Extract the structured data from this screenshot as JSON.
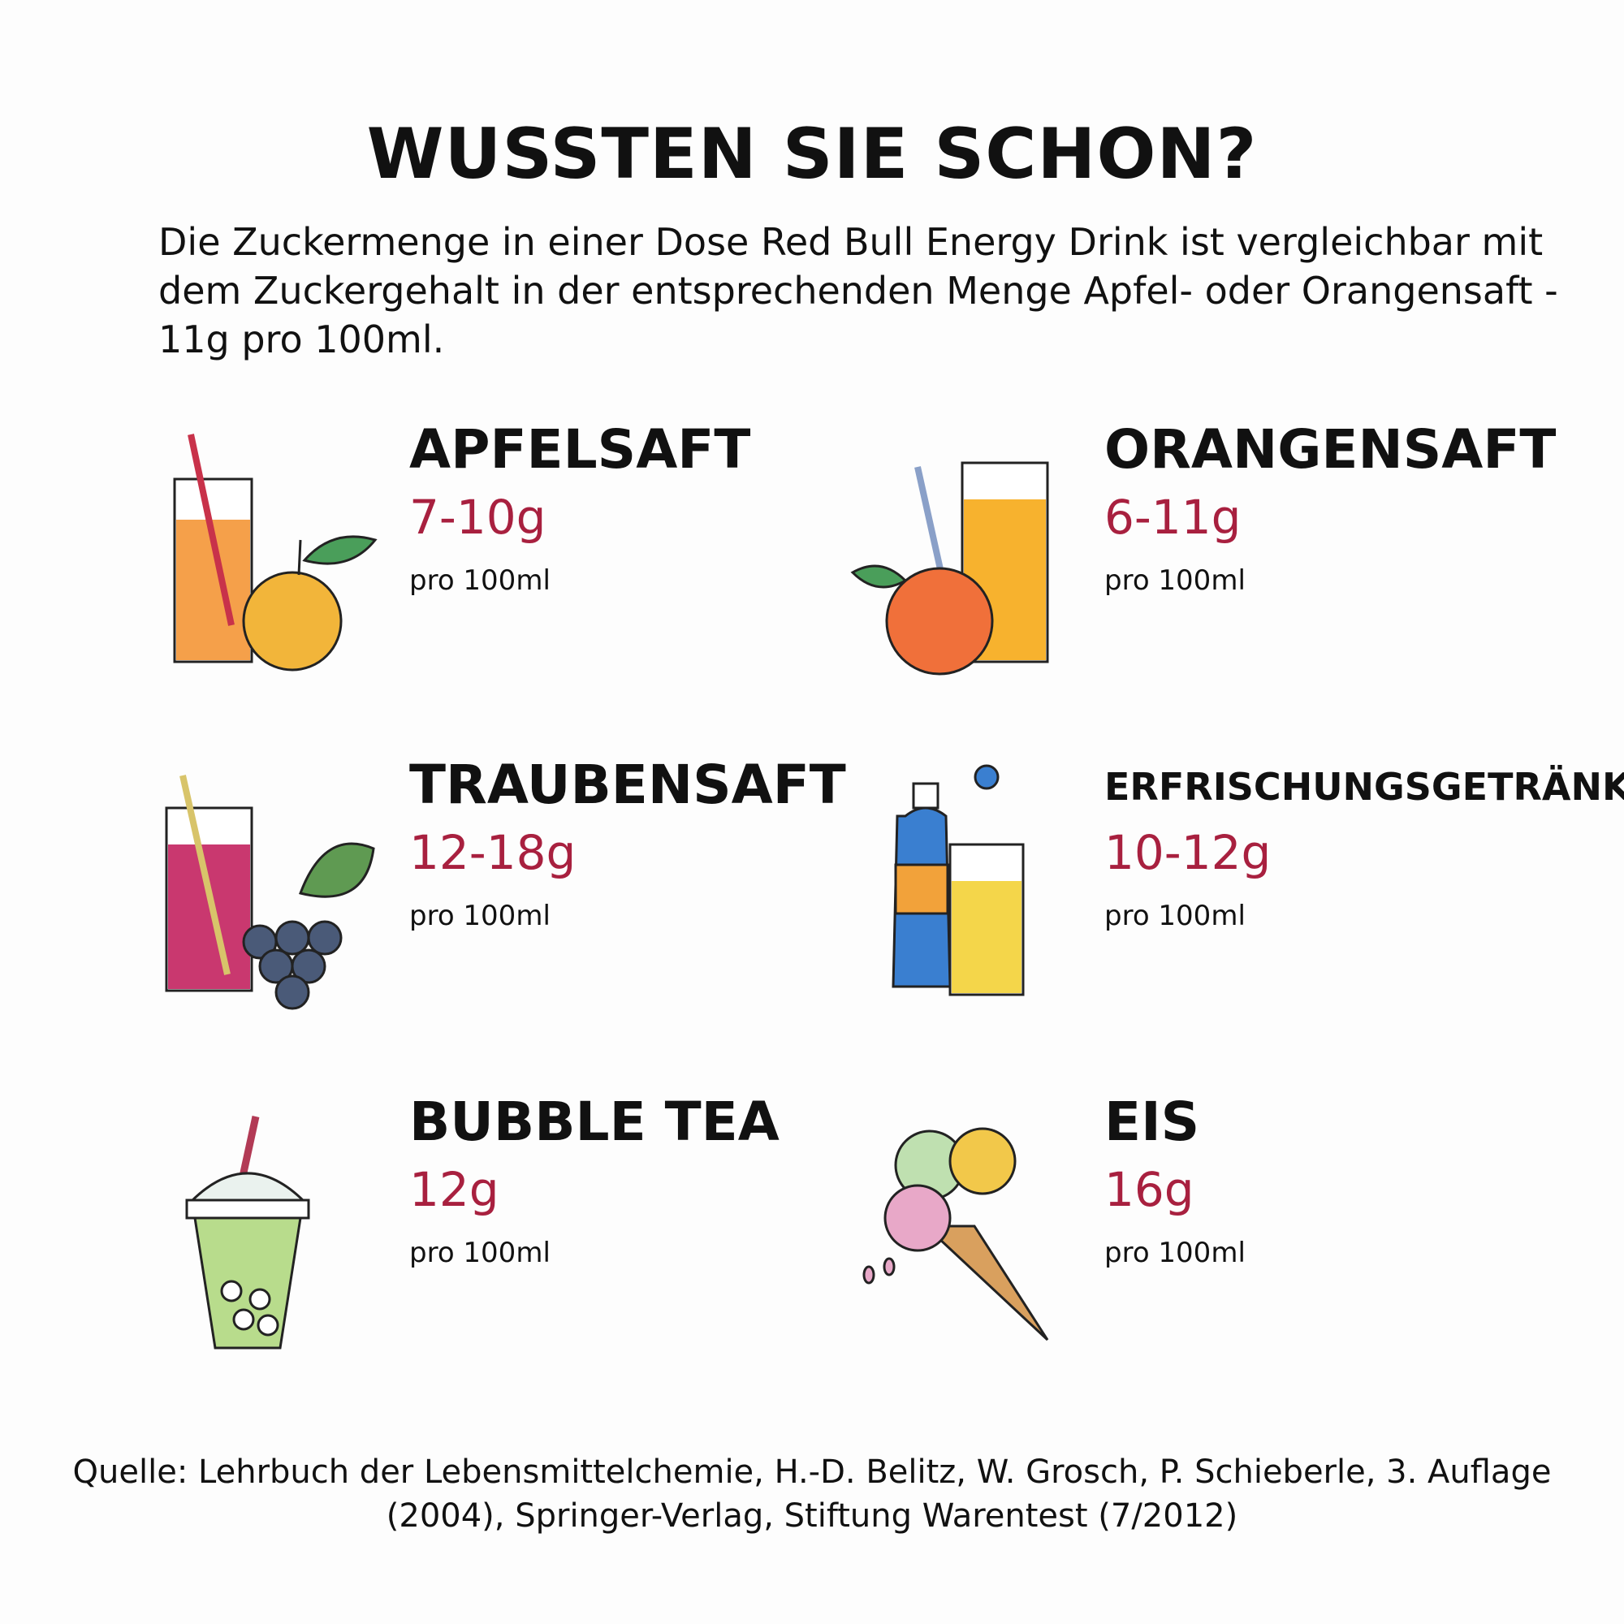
{
  "title": "WUSSTEN SIE SCHON?",
  "intro": "Die Zuckermenge in einer Dose Red Bull Energy Drink ist vergleichbar mit dem Zuckergehalt in der entsprechenden Menge Apfel- oder Orangensaft - 11g pro 100ml.",
  "items": [
    {
      "name": "APFELSAFT",
      "amount": "7-10g",
      "unit": "pro 100ml"
    },
    {
      "name": "ORANGENSAFT",
      "amount": "6-11g",
      "unit": "pro 100ml"
    },
    {
      "name": "TRAUBENSAFT",
      "amount": "12-18g",
      "unit": "pro 100ml"
    },
    {
      "name": "ERFRISCHUNGSGETRÄNKE",
      "amount": "10-12g",
      "unit": "pro 100ml"
    },
    {
      "name": "BUBBLE TEA",
      "amount": "12g",
      "unit": "pro 100ml"
    },
    {
      "name": "EIS",
      "amount": "16g",
      "unit": "pro 100ml"
    }
  ],
  "source": "Quelle: Lehrbuch der Lebensmittelchemie, H.-D. Belitz, W. Grosch, P. Schieberle, 3. Auflage (2004), Springer-Verlag, Stiftung Warentest (7/2012)"
}
